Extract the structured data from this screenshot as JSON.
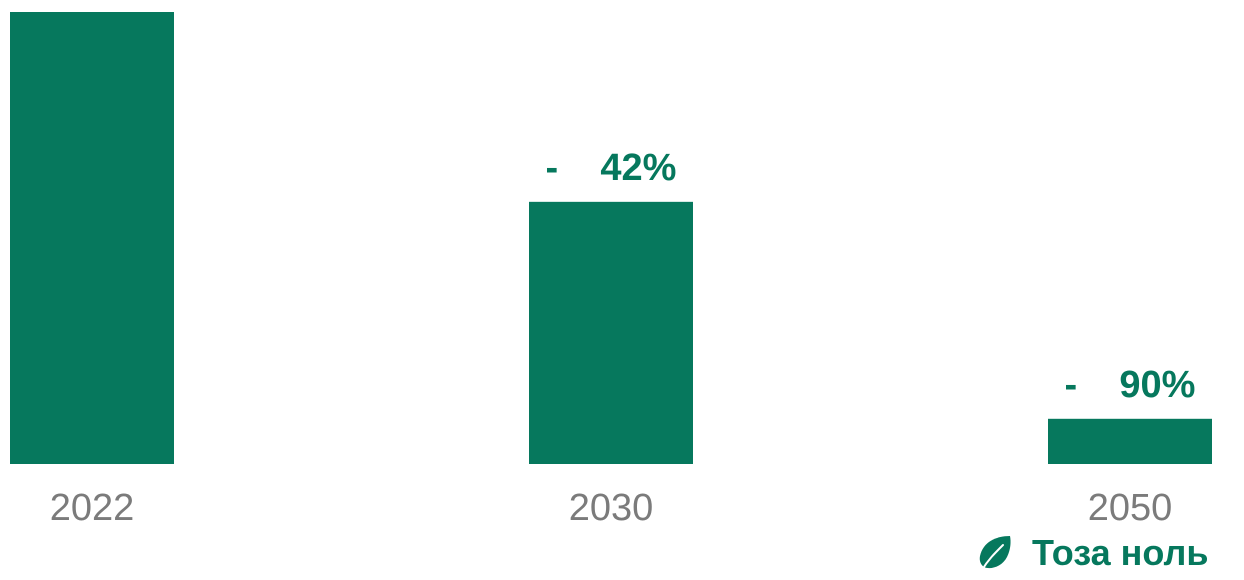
{
  "chart_data": {
    "type": "bar",
    "categories": [
      "2022",
      "2030",
      "2050"
    ],
    "values": [
      100,
      58,
      10
    ],
    "data_labels": [
      "",
      "-    42%",
      "-    90%"
    ],
    "ylim": [
      0,
      100
    ],
    "grid": false,
    "bar_color": "#06785d"
  },
  "colors": {
    "bar": "#06785d",
    "label": "#06785d",
    "tick": "#7b7b7b",
    "badge_text": "#06785d"
  },
  "badge": {
    "icon": "leaf-icon",
    "text": "Тоза ноль"
  }
}
